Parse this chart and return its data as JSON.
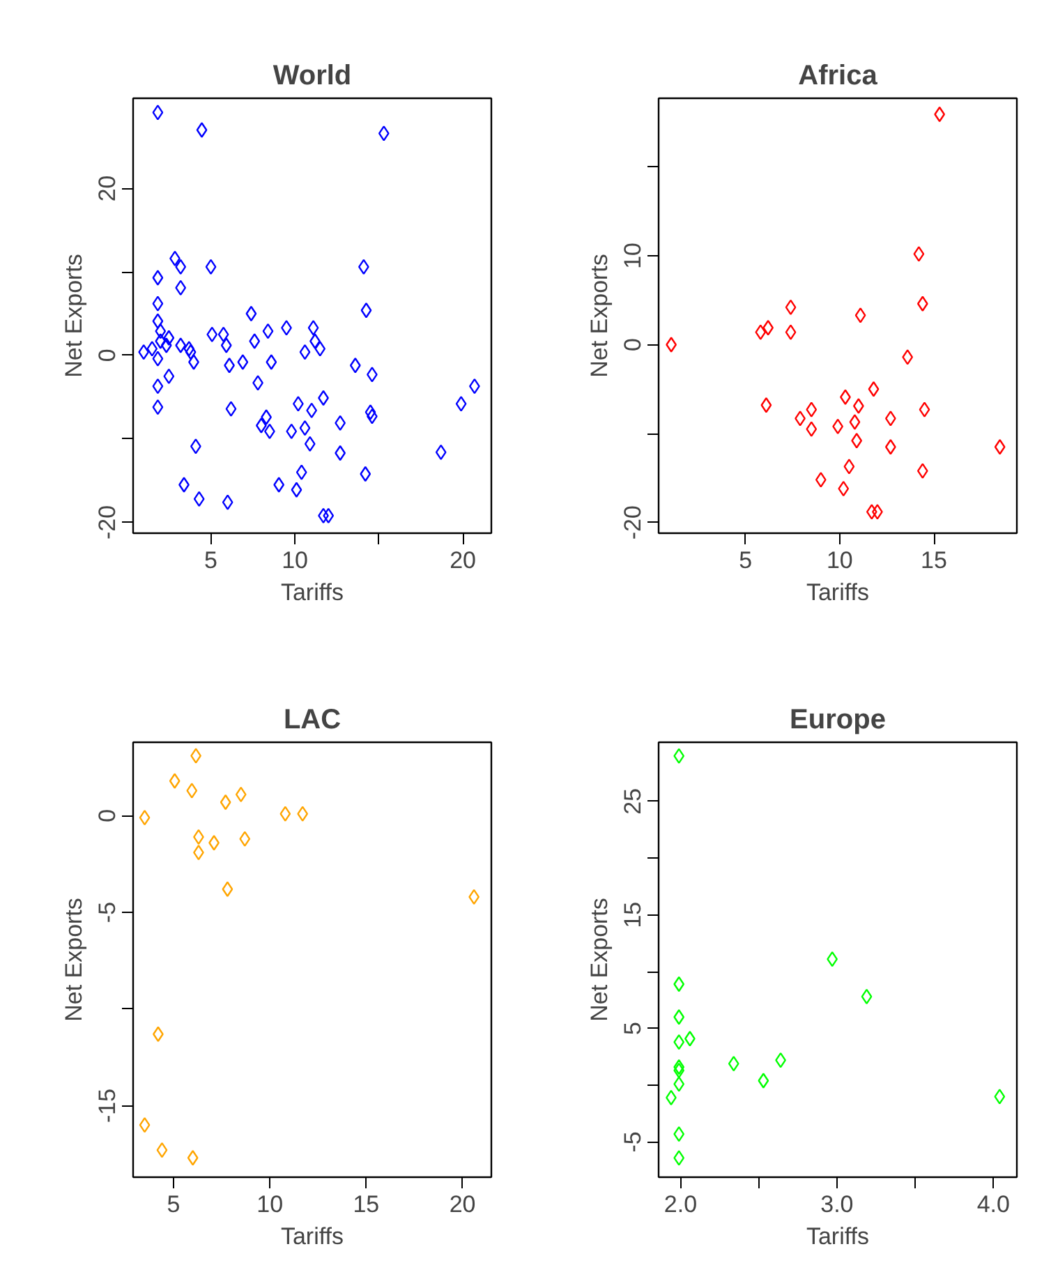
{
  "chart_data": [
    {
      "type": "scatter",
      "title": "World",
      "xlabel": "Tariffs",
      "ylabel": "Net Exports",
      "marker": "diamond",
      "grid": false,
      "xlim": [
        0.37,
        21.7
      ],
      "ylim": [
        -21.3,
        30.8
      ],
      "xticks": [
        5,
        10,
        {
          "value": 15,
          "label": null
        },
        20
      ],
      "yticks": [
        -20,
        {
          "value": -10,
          "label": null
        },
        0,
        {
          "value": 10,
          "label": null
        },
        20
      ],
      "series": [
        {
          "color": "#0000ff",
          "x": [
            1.84,
            4.46,
            15.3,
            2.86,
            3.2,
            5.0,
            1.84,
            3.2,
            14.1,
            14.25,
            1.84,
            1.84,
            2.0,
            2.5,
            3.2,
            3.7,
            1.0,
            1.84,
            2.35,
            3.98,
            5.07,
            5.75,
            5.92,
            6.1,
            6.9,
            7.4,
            7.6,
            8.4,
            8.6,
            9.5,
            7.8,
            10.6,
            11.1,
            11.5,
            1.84,
            2.5,
            1.84,
            6.2,
            4.1,
            8.3,
            8.0,
            8.5,
            10.2,
            11.0,
            11.7,
            9.8,
            10.6,
            10.9,
            12.7,
            12.7,
            13.6,
            14.6,
            14.5,
            14.6,
            14.2,
            10.4,
            10.1,
            9.05,
            3.4,
            4.3,
            6.0,
            11.7,
            12.0,
            18.7,
            19.9,
            20.7,
            2.0,
            1.5,
            3.8,
            11.2
          ],
          "values": [
            29.1,
            27.0,
            26.6,
            11.6,
            10.6,
            10.6,
            9.3,
            8.1,
            10.6,
            5.4,
            6.2,
            4.1,
            2.9,
            2.1,
            1.2,
            0.8,
            0.4,
            -0.4,
            1.2,
            -0.8,
            2.5,
            2.5,
            1.2,
            -1.2,
            -0.8,
            5.0,
            1.7,
            2.9,
            -0.8,
            3.3,
            -3.3,
            0.4,
            3.3,
            0.8,
            -3.7,
            -2.5,
            -6.2,
            -6.4,
            -10.9,
            -7.4,
            -8.4,
            -9.1,
            -5.8,
            -6.6,
            -5.1,
            -9.1,
            -8.7,
            -10.6,
            -8.1,
            -11.7,
            -1.2,
            -2.3,
            -6.8,
            -7.3,
            -14.2,
            -14.0,
            -16.1,
            -15.5,
            -15.5,
            -17.2,
            -17.6,
            -19.2,
            -19.2,
            -11.6,
            -5.8,
            -3.7,
            1.7,
            0.8,
            0.4,
            1.7
          ]
        }
      ]
    },
    {
      "type": "scatter",
      "title": "Africa",
      "xlabel": "Tariffs",
      "ylabel": "Net Exports",
      "marker": "diamond",
      "grid": false,
      "xlim": [
        0.39,
        19.4
      ],
      "ylim": [
        -21.2,
        27.7
      ],
      "xticks": [
        5,
        10,
        15
      ],
      "yticks": [
        -20,
        {
          "value": -10,
          "label": null
        },
        0,
        10,
        {
          "value": 20,
          "label": null
        }
      ],
      "series": [
        {
          "color": "#ff0000",
          "x": [
            15.3,
            14.2,
            14.4,
            11.1,
            7.4,
            7.4,
            5.8,
            6.2,
            1.06,
            13.6,
            6.1,
            7.9,
            8.5,
            8.5,
            10.3,
            11.0,
            11.8,
            9.9,
            10.8,
            10.9,
            12.7,
            12.7,
            14.5,
            14.4,
            18.5,
            10.5,
            10.2,
            9.0,
            11.7,
            12.0
          ],
          "values": [
            25.9,
            10.2,
            4.6,
            3.3,
            4.2,
            1.4,
            1.4,
            1.9,
            0,
            -1.4,
            -6.8,
            -8.3,
            -7.3,
            -9.5,
            -5.9,
            -6.9,
            -5.0,
            -9.2,
            -8.7,
            -10.8,
            -8.3,
            -11.5,
            -7.3,
            -14.2,
            -11.5,
            -13.7,
            -16.2,
            -15.2,
            -18.8,
            -18.8
          ]
        }
      ]
    },
    {
      "type": "scatter",
      "title": "LAC",
      "xlabel": "Tariffs",
      "ylabel": "Net Exports",
      "marker": "diamond",
      "grid": false,
      "xlim": [
        2.9,
        21.5
      ],
      "ylim": [
        -18.7,
        3.8
      ],
      "xticks": [
        5,
        10,
        15,
        20
      ],
      "yticks": [
        -15,
        {
          "value": -10,
          "label": null
        },
        -5,
        0
      ],
      "series": [
        {
          "color": "#ffa500",
          "x": [
            6.16,
            5.06,
            5.95,
            7.7,
            8.5,
            3.5,
            10.8,
            11.7,
            6.3,
            6.3,
            7.1,
            8.7,
            7.8,
            20.6,
            4.2,
            3.5,
            4.4,
            6.0
          ],
          "values": [
            3.1,
            1.8,
            1.3,
            0.7,
            1.1,
            -0.1,
            0.1,
            0.1,
            -1.1,
            -1.9,
            -1.4,
            -1.2,
            -3.8,
            -4.2,
            -11.3,
            -16.0,
            -17.3,
            -17.7
          ]
        }
      ]
    },
    {
      "type": "scatter",
      "title": "Europe",
      "xlabel": "Tariffs",
      "ylabel": "Net Exports",
      "marker": "diamond",
      "grid": false,
      "xlim": [
        1.86,
        4.15
      ],
      "ylim": [
        -8.1,
        30.2
      ],
      "xticks": [
        {
          "value": 2,
          "label": "2.0"
        },
        {
          "value": 2.5,
          "label": null
        },
        {
          "value": 3,
          "label": "3.0"
        },
        {
          "value": 3.5,
          "label": null
        },
        {
          "value": 4,
          "label": "4.0"
        }
      ],
      "yticks": [
        -5,
        {
          "value": 0,
          "label": null
        },
        5,
        {
          "value": 10,
          "label": null
        },
        15,
        {
          "value": 20,
          "label": null
        },
        25
      ],
      "series": [
        {
          "color": "#00ff00",
          "x": [
            1.99,
            1.99,
            1.99,
            1.99,
            2.06,
            1.99,
            1.99,
            1.99,
            1.94,
            1.99,
            1.99,
            2.34,
            2.53,
            2.64,
            2.97,
            3.19,
            4.04
          ],
          "values": [
            29.0,
            8.9,
            6.0,
            3.8,
            4.1,
            1.6,
            1.3,
            0.1,
            -1.1,
            -4.3,
            -6.4,
            1.9,
            0.4,
            2.2,
            11.1,
            7.8,
            -1.0
          ]
        }
      ]
    }
  ]
}
